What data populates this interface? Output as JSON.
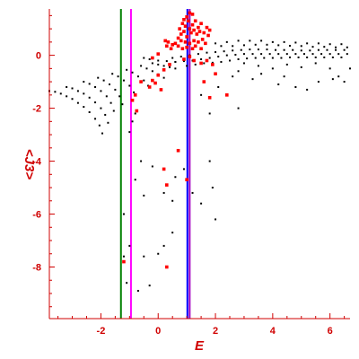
{
  "chart_data": {
    "type": "scatter",
    "title": "",
    "xlabel": "E",
    "ylabel": "<J3>",
    "xlim": [
      -3.8,
      6.7
    ],
    "ylim": [
      -9.95,
      1.75
    ],
    "xticks": [
      -2,
      0,
      2,
      4,
      6
    ],
    "yticks": [
      -8,
      -6,
      -4,
      -2,
      0
    ],
    "grid": false,
    "colors": {
      "axis": "#d00000",
      "black_points": "#000000",
      "red_points": "#ff0000",
      "line_green": "#008000",
      "line_magenta": "#ff00ff",
      "line_blue": "#0000ff",
      "line_purple": "#a000c0"
    },
    "vertical_lines": [
      {
        "x": -1.3,
        "color": "#008000"
      },
      {
        "x": -0.95,
        "color": "#ff00ff"
      },
      {
        "x": 1.02,
        "color": "#0000ff"
      },
      {
        "x": 1.1,
        "color": "#a000c0"
      }
    ],
    "series": [
      {
        "color": "#000000",
        "points": [
          [
            -3.8,
            -1.35
          ],
          [
            -3.6,
            -1.38
          ],
          [
            -3.4,
            -1.45
          ],
          [
            -3.2,
            -1.55
          ],
          [
            -3.0,
            -1.65
          ],
          [
            -2.8,
            -1.8
          ],
          [
            -2.6,
            -1.95
          ],
          [
            -2.4,
            -2.15
          ],
          [
            -2.2,
            -2.4
          ],
          [
            -2.05,
            -2.65
          ],
          [
            -1.95,
            -2.95
          ],
          [
            -3.2,
            -1.2
          ],
          [
            -3.0,
            -1.25
          ],
          [
            -2.8,
            -1.35
          ],
          [
            -2.6,
            -1.45
          ],
          [
            -2.4,
            -1.6
          ],
          [
            -2.2,
            -1.78
          ],
          [
            -2.0,
            -2.0
          ],
          [
            -1.85,
            -2.25
          ],
          [
            -1.75,
            -2.55
          ],
          [
            -2.6,
            -1.0
          ],
          [
            -2.4,
            -1.08
          ],
          [
            -2.2,
            -1.2
          ],
          [
            -2.0,
            -1.35
          ],
          [
            -1.8,
            -1.55
          ],
          [
            -1.65,
            -1.8
          ],
          [
            -1.55,
            -2.1
          ],
          [
            -2.1,
            -0.85
          ],
          [
            -1.9,
            -0.95
          ],
          [
            -1.7,
            -1.1
          ],
          [
            -1.5,
            -1.3
          ],
          [
            -1.35,
            -1.55
          ],
          [
            -1.25,
            -1.85
          ],
          [
            -1.6,
            -0.7
          ],
          [
            -1.4,
            -0.8
          ],
          [
            -1.2,
            -0.95
          ],
          [
            -1.0,
            -1.15
          ],
          [
            -0.85,
            -1.4
          ],
          [
            -1.1,
            -0.55
          ],
          [
            -0.9,
            -0.65
          ],
          [
            -0.7,
            -0.8
          ],
          [
            -0.5,
            -0.95
          ],
          [
            -0.35,
            -1.15
          ],
          [
            -0.6,
            -0.4
          ],
          [
            -0.4,
            -0.5
          ],
          [
            -0.2,
            -0.6
          ],
          [
            0.0,
            -0.72
          ],
          [
            0.2,
            -0.85
          ],
          [
            -0.2,
            -0.3
          ],
          [
            0.0,
            -0.35
          ],
          [
            0.2,
            -0.4
          ],
          [
            0.4,
            -0.45
          ],
          [
            0.6,
            -0.5
          ],
          [
            -0.5,
            -0.1
          ],
          [
            -0.3,
            -0.15
          ],
          [
            0.0,
            -0.2
          ],
          [
            0.3,
            -0.22
          ],
          [
            0.6,
            -0.25
          ],
          [
            0.5,
            -0.1
          ],
          [
            0.8,
            -0.05
          ],
          [
            1.1,
            0.0
          ],
          [
            1.4,
            0.05
          ],
          [
            1.7,
            0.1
          ],
          [
            2.0,
            0.12
          ],
          [
            2.3,
            0.15
          ],
          [
            2.6,
            0.18
          ],
          [
            2.9,
            0.2
          ],
          [
            3.2,
            0.22
          ],
          [
            3.5,
            0.22
          ],
          [
            3.8,
            0.22
          ],
          [
            4.1,
            0.2
          ],
          [
            4.4,
            0.2
          ],
          [
            4.7,
            0.2
          ],
          [
            5.0,
            0.18
          ],
          [
            5.3,
            0.18
          ],
          [
            5.6,
            0.2
          ],
          [
            5.9,
            0.2
          ],
          [
            6.2,
            0.2
          ],
          [
            6.5,
            0.2
          ],
          [
            0.6,
            -0.25
          ],
          [
            0.9,
            -0.22
          ],
          [
            1.2,
            -0.2
          ],
          [
            1.5,
            -0.15
          ],
          [
            1.8,
            -0.1
          ],
          [
            2.1,
            -0.05
          ],
          [
            2.4,
            0.0
          ],
          [
            2.7,
            0.02
          ],
          [
            3.0,
            0.05
          ],
          [
            3.3,
            0.05
          ],
          [
            3.6,
            0.05
          ],
          [
            3.9,
            0.05
          ],
          [
            4.2,
            0.05
          ],
          [
            4.5,
            0.05
          ],
          [
            4.8,
            0.05
          ],
          [
            5.1,
            0.05
          ],
          [
            5.4,
            0.05
          ],
          [
            5.7,
            0.05
          ],
          [
            6.0,
            0.05
          ],
          [
            6.3,
            0.05
          ],
          [
            6.6,
            0.05
          ],
          [
            1.0,
            -0.4
          ],
          [
            1.3,
            -0.35
          ],
          [
            1.6,
            -0.3
          ],
          [
            1.9,
            -0.28
          ],
          [
            2.2,
            -0.25
          ],
          [
            2.5,
            -0.2
          ],
          [
            2.8,
            -0.15
          ],
          [
            3.1,
            -0.12
          ],
          [
            3.4,
            -0.1
          ],
          [
            3.7,
            -0.1
          ],
          [
            4.0,
            -0.1
          ],
          [
            4.3,
            -0.1
          ],
          [
            4.6,
            -0.08
          ],
          [
            4.9,
            -0.08
          ],
          [
            5.2,
            -0.08
          ],
          [
            5.5,
            -0.08
          ],
          [
            5.8,
            -0.08
          ],
          [
            6.1,
            -0.08
          ],
          [
            6.4,
            -0.08
          ],
          [
            2.0,
            0.45
          ],
          [
            2.4,
            0.5
          ],
          [
            2.8,
            0.55
          ],
          [
            3.2,
            0.55
          ],
          [
            3.6,
            0.55
          ],
          [
            4.0,
            0.5
          ],
          [
            4.4,
            0.5
          ],
          [
            4.8,
            0.48
          ],
          [
            5.2,
            0.45
          ],
          [
            5.6,
            0.45
          ],
          [
            6.0,
            0.42
          ],
          [
            6.4,
            0.42
          ],
          [
            2.2,
            0.35
          ],
          [
            2.6,
            0.35
          ],
          [
            3.0,
            0.38
          ],
          [
            3.4,
            0.4
          ],
          [
            3.8,
            0.4
          ],
          [
            4.2,
            0.38
          ],
          [
            4.6,
            0.36
          ],
          [
            5.0,
            0.35
          ],
          [
            5.4,
            0.32
          ],
          [
            5.8,
            0.32
          ],
          [
            6.2,
            0.3
          ],
          [
            6.6,
            0.3
          ],
          [
            3.0,
            -0.3
          ],
          [
            3.5,
            -0.4
          ],
          [
            4.0,
            -0.5
          ],
          [
            4.5,
            -0.35
          ],
          [
            5.0,
            -0.45
          ],
          [
            5.5,
            -0.3
          ],
          [
            6.0,
            -0.5
          ],
          [
            2.6,
            -0.8
          ],
          [
            2.8,
            -0.6
          ],
          [
            3.3,
            -0.9
          ],
          [
            3.6,
            -0.7
          ],
          [
            4.2,
            -1.1
          ],
          [
            4.4,
            -0.8
          ],
          [
            4.8,
            -1.2
          ],
          [
            5.2,
            -1.3
          ],
          [
            5.6,
            -1.0
          ],
          [
            6.1,
            -0.9
          ],
          [
            6.3,
            -0.8
          ],
          [
            6.5,
            -1.0
          ],
          [
            6.7,
            -0.5
          ],
          [
            1.5,
            -1.5
          ],
          [
            2.1,
            -1.2
          ],
          [
            2.8,
            -2.0
          ],
          [
            1.8,
            -2.2
          ],
          [
            -0.8,
            -2.2
          ],
          [
            -0.9,
            -2.5
          ],
          [
            -1.0,
            -2.9
          ],
          [
            -0.6,
            -4.0
          ],
          [
            -0.8,
            -4.7
          ],
          [
            -0.5,
            -5.3
          ],
          [
            -0.2,
            -4.2
          ],
          [
            0.2,
            -5.2
          ],
          [
            0.5,
            -5.5
          ],
          [
            0.6,
            -4.6
          ],
          [
            0.9,
            -4.3
          ],
          [
            1.2,
            -5.2
          ],
          [
            1.5,
            -5.6
          ],
          [
            1.9,
            -5.0
          ],
          [
            1.8,
            -4.0
          ],
          [
            2.0,
            -6.2
          ],
          [
            0.5,
            -6.7
          ],
          [
            0.2,
            -7.2
          ],
          [
            0.0,
            -7.5
          ],
          [
            -1.0,
            -7.2
          ],
          [
            -1.2,
            -6.0
          ],
          [
            -0.5,
            -7.6
          ],
          [
            -0.3,
            -8.7
          ],
          [
            -0.7,
            -8.9
          ],
          [
            -1.1,
            -8.6
          ],
          [
            -1.2,
            -7.6
          ]
        ]
      },
      {
        "color": "#ff0000",
        "points": [
          [
            0.75,
            1.0
          ],
          [
            0.8,
            0.8
          ],
          [
            0.85,
            1.2
          ],
          [
            0.9,
            0.9
          ],
          [
            0.95,
            1.1
          ],
          [
            1.0,
            0.7
          ],
          [
            1.05,
            1.3
          ],
          [
            1.1,
            1.0
          ],
          [
            1.15,
            0.85
          ],
          [
            1.2,
            1.15
          ],
          [
            1.25,
            0.95
          ],
          [
            1.3,
            1.3
          ],
          [
            1.35,
            0.8
          ],
          [
            1.4,
            1.05
          ],
          [
            1.45,
            0.9
          ],
          [
            1.5,
            1.2
          ],
          [
            0.8,
            0.55
          ],
          [
            0.95,
            0.5
          ],
          [
            1.1,
            0.45
          ],
          [
            1.25,
            0.55
          ],
          [
            1.4,
            0.5
          ],
          [
            1.55,
            0.6
          ],
          [
            1.65,
            0.45
          ],
          [
            1.75,
            0.75
          ],
          [
            1.8,
            0.95
          ],
          [
            1.7,
            1.05
          ],
          [
            1.2,
            1.55
          ],
          [
            1.1,
            1.6
          ],
          [
            1.0,
            1.45
          ],
          [
            0.9,
            1.35
          ],
          [
            0.7,
            0.65
          ],
          [
            1.6,
            0.85
          ],
          [
            1.3,
            0.35
          ],
          [
            1.5,
            0.25
          ],
          [
            1.2,
            0.25
          ],
          [
            1.0,
            0.3
          ],
          [
            0.85,
            0.25
          ],
          [
            0.7,
            0.35
          ],
          [
            0.6,
            0.45
          ],
          [
            0.3,
            0.35
          ],
          [
            0.35,
            0.5
          ],
          [
            0.45,
            0.25
          ],
          [
            0.5,
            0.4
          ],
          [
            0.25,
            0.55
          ],
          [
            0.9,
            -0.15
          ],
          [
            1.1,
            -0.05
          ],
          [
            1.25,
            -0.2
          ],
          [
            1.5,
            -0.3
          ],
          [
            1.7,
            -0.2
          ],
          [
            1.9,
            -0.35
          ],
          [
            0.4,
            -0.35
          ],
          [
            0.2,
            -0.55
          ],
          [
            0.0,
            -0.75
          ],
          [
            -0.2,
            -0.95
          ],
          [
            -0.1,
            -1.05
          ],
          [
            -0.3,
            -1.2
          ],
          [
            0.1,
            -1.3
          ],
          [
            -0.6,
            -1.0
          ],
          [
            -0.8,
            -1.5
          ],
          [
            -0.9,
            -1.7
          ],
          [
            -0.75,
            -2.1
          ],
          [
            -0.2,
            -0.1
          ],
          [
            0.0,
            0.05
          ],
          [
            2.0,
            -0.7
          ],
          [
            2.4,
            -1.5
          ],
          [
            1.6,
            -1.0
          ],
          [
            1.8,
            -1.6
          ],
          [
            0.7,
            -3.6
          ],
          [
            0.2,
            -4.3
          ],
          [
            0.3,
            -4.9
          ],
          [
            1.0,
            -4.7
          ],
          [
            0.3,
            -8.0
          ],
          [
            -1.2,
            -7.8
          ]
        ]
      }
    ]
  }
}
